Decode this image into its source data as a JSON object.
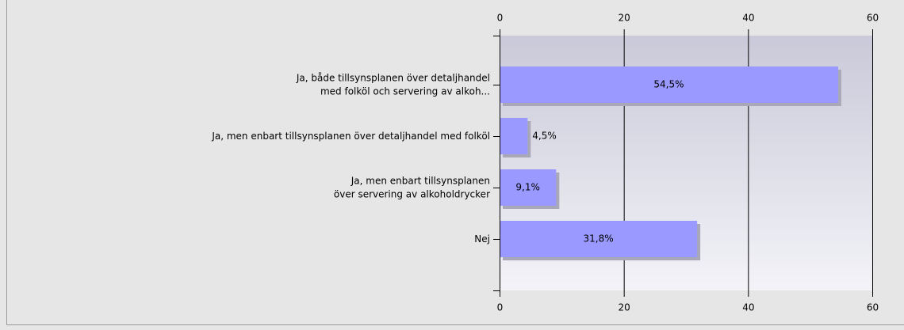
{
  "chart_data": {
    "type": "bar",
    "orientation": "horizontal",
    "categories": [
      "Ja, både tillsynsplanen över detaljhandel\nmed folköl och servering av alkoh...",
      "Ja, men enbart tillsynsplanen över detaljhandel med folköl",
      "Ja, men enbart tillsynsplanen\növer servering av alkoholdrycker",
      "Nej"
    ],
    "values": [
      54.5,
      4.5,
      9.1,
      31.8
    ],
    "value_labels": [
      "54,5%",
      "4,5%",
      "9,1%",
      "31,8%"
    ],
    "color": "#9999ff",
    "xlim": [
      0,
      60
    ],
    "xticks": [
      0,
      20,
      40,
      60
    ],
    "grid": true
  }
}
